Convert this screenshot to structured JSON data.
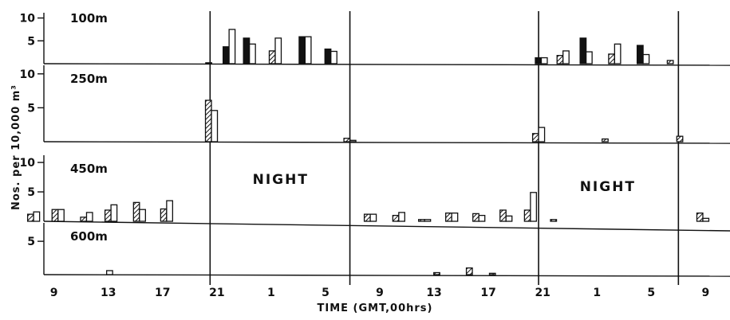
{
  "chart_data": {
    "type": "bar",
    "xlabel": "TIME (GMT,00hrs)",
    "ylabel": "Nos. per 10,000 m³",
    "x_ticks": [
      {
        "t": 9,
        "label": "9"
      },
      {
        "t": 13,
        "label": "13"
      },
      {
        "t": 17,
        "label": "17"
      },
      {
        "t": 21,
        "label": "21"
      },
      {
        "t": 25,
        "label": "1"
      },
      {
        "t": 29,
        "label": "5"
      },
      {
        "t": 33,
        "label": "9"
      },
      {
        "t": 37,
        "label": "13"
      },
      {
        "t": 41,
        "label": "17"
      },
      {
        "t": 45,
        "label": "21"
      },
      {
        "t": 49,
        "label": "1"
      },
      {
        "t": 53,
        "label": "5"
      },
      {
        "t": 57,
        "label": "9"
      }
    ],
    "xlim": [
      6.2,
      58.8
    ],
    "time_boundaries": [
      20.5,
      30.8,
      44.7,
      55.0
    ],
    "night_label": "NIGHT",
    "night_label_t": [
      25.7,
      49.8
    ],
    "series_styles": [
      "hatched",
      "solid",
      "open"
    ],
    "panels": [
      {
        "depth": "100m",
        "y_ticks": [
          {
            "v": 5,
            "label": "5"
          },
          {
            "v": 10,
            "label": "10"
          }
        ],
        "ylim": [
          0,
          11.5
        ],
        "bars": [
          {
            "t": 20.4,
            "values": [
              0.2,
              null,
              null
            ]
          },
          {
            "t": 21.9,
            "values": [
              null,
              3.7,
              7.5
            ]
          },
          {
            "t": 23.4,
            "values": [
              null,
              5.6,
              4.3
            ]
          },
          {
            "t": 25.3,
            "values": [
              2.8,
              null,
              5.6
            ]
          },
          {
            "t": 27.5,
            "values": [
              null,
              5.9,
              5.9
            ]
          },
          {
            "t": 29.4,
            "values": [
              null,
              3.2,
              2.7
            ]
          },
          {
            "t": 44.9,
            "values": [
              null,
              1.3,
              1.3
            ]
          },
          {
            "t": 46.5,
            "values": [
              1.8,
              null,
              2.8
            ]
          },
          {
            "t": 48.2,
            "values": [
              null,
              5.6,
              2.6
            ]
          },
          {
            "t": 50.3,
            "values": [
              2.1,
              null,
              4.3
            ]
          },
          {
            "t": 52.4,
            "values": [
              null,
              4.0,
              2.0
            ]
          },
          {
            "t": 54.4,
            "values": [
              0.7,
              null,
              null
            ]
          }
        ]
      },
      {
        "depth": "250m",
        "y_ticks": [
          {
            "v": 5,
            "label": "5"
          },
          {
            "v": 10,
            "label": "10"
          }
        ],
        "ylim": [
          0,
          11.5
        ],
        "bars": [
          {
            "t": 20.6,
            "values": [
              6.1,
              null,
              4.6
            ]
          },
          {
            "t": 30.8,
            "values": [
              0.5,
              null,
              0.2
            ]
          },
          {
            "t": 44.7,
            "values": [
              1.2,
              null,
              2.1
            ]
          },
          {
            "t": 49.6,
            "values": [
              0.4,
              null,
              null
            ]
          },
          {
            "t": 55.1,
            "values": [
              0.8,
              null,
              null
            ]
          }
        ]
      },
      {
        "depth": "450m",
        "y_ticks": [
          {
            "v": 5,
            "label": "5"
          },
          {
            "v": 10,
            "label": "10"
          }
        ],
        "ylim": [
          0,
          11.5
        ],
        "bars": [
          {
            "t": 7.5,
            "values": [
              1.2,
              null,
              1.6
            ]
          },
          {
            "t": 9.3,
            "values": [
              2.0,
              null,
              2.0
            ]
          },
          {
            "t": 11.4,
            "values": [
              0.7,
              null,
              1.5
            ]
          },
          {
            "t": 13.2,
            "values": [
              1.9,
              null,
              2.8
            ]
          },
          {
            "t": 15.3,
            "values": [
              3.2,
              null,
              2.0
            ]
          },
          {
            "t": 17.3,
            "values": [
              2.1,
              null,
              3.5
            ]
          },
          {
            "t": 32.3,
            "values": [
              1.2,
              null,
              1.2
            ]
          },
          {
            "t": 34.4,
            "values": [
              1.0,
              null,
              1.5
            ]
          },
          {
            "t": 36.3,
            "values": [
              0.3,
              null,
              0.3
            ]
          },
          {
            "t": 38.3,
            "values": [
              1.4,
              null,
              1.4
            ]
          },
          {
            "t": 40.3,
            "values": [
              1.3,
              null,
              1.0
            ]
          },
          {
            "t": 42.3,
            "values": [
              1.9,
              null,
              0.9
            ]
          },
          {
            "t": 44.1,
            "values": [
              1.9,
              null,
              4.9
            ]
          },
          {
            "t": 45.8,
            "values": [
              0.3,
              null,
              null
            ]
          },
          {
            "t": 56.8,
            "values": [
              1.4,
              null,
              0.5
            ]
          }
        ]
      },
      {
        "depth": "600m",
        "y_ticks": [
          {
            "v": 5,
            "label": "5"
          }
        ],
        "ylim": [
          0,
          8.0
        ],
        "bars": [
          {
            "t": 13.1,
            "values": [
              null,
              null,
              0.6
            ]
          },
          {
            "t": 37.2,
            "values": [
              0.3,
              null,
              null
            ]
          },
          {
            "t": 39.6,
            "values": [
              1.0,
              null,
              null
            ]
          },
          {
            "t": 41.3,
            "values": [
              0.2,
              null,
              null
            ]
          }
        ]
      }
    ]
  }
}
